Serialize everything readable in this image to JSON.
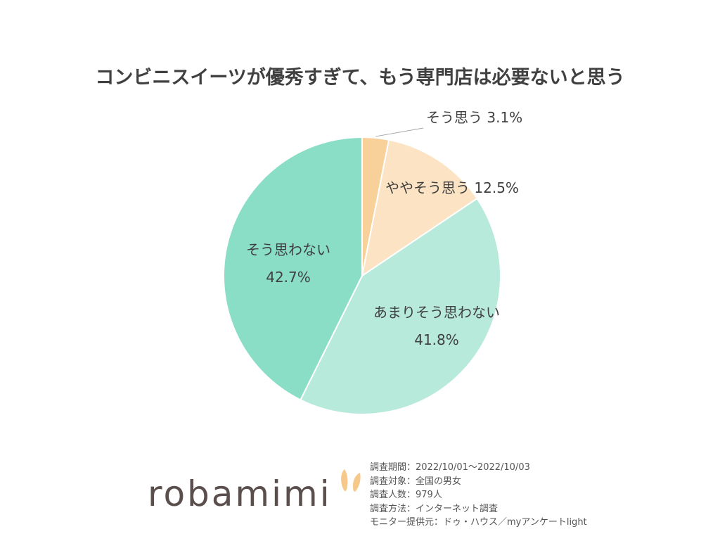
{
  "title": "コンビニスイーツが優秀すぎて、もう専門店は必要ないと思う",
  "chart_data": {
    "type": "pie",
    "title": "コンビニスイーツが優秀すぎて、もう専門店は必要ないと思う",
    "slices": [
      {
        "label": "そう思う",
        "value": 3.1,
        "display": "3.1%",
        "color": "#f8d19a"
      },
      {
        "label": "ややそう思う",
        "value": 12.5,
        "display": "12.5%",
        "color": "#fbe3c3"
      },
      {
        "label": "あまりそう思わない",
        "value": 41.8,
        "display": "41.8%",
        "color": "#b7eadb"
      },
      {
        "label": "そう思わない",
        "value": 42.7,
        "display": "42.7%",
        "color": "#89dec5"
      }
    ],
    "start_angle": "12 o'clock",
    "direction": "clockwise"
  },
  "brand": "robamimi",
  "survey": [
    "調査期間：2022/10/01～2022/10/03",
    "調査対象：全国の男女",
    "調査人数：979人",
    "調査方法：インターネット調査",
    "モニター提供元：ドゥ・ハウス／myアンケートlight"
  ]
}
